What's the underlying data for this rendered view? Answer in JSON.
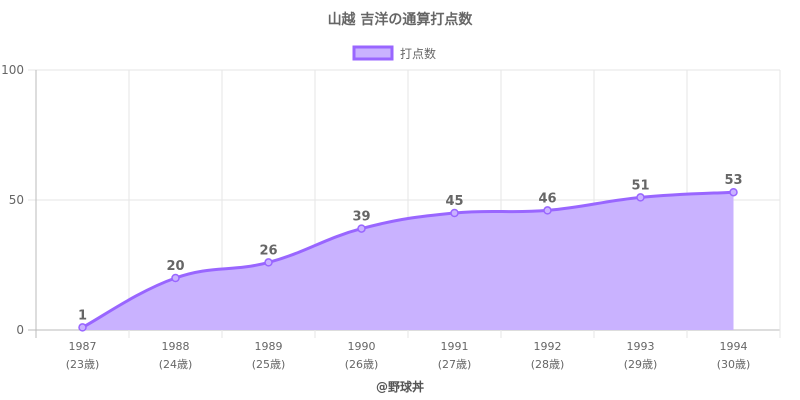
{
  "chart_data": {
    "type": "area",
    "title": "山越 吉洋の通算打点数",
    "categories": [
      "1987",
      "1988",
      "1989",
      "1990",
      "1991",
      "1992",
      "1993",
      "1994"
    ],
    "sublabels": [
      "(23歳)",
      "(24歳)",
      "(25歳)",
      "(26歳)",
      "(27歳)",
      "(28歳)",
      "(29歳)",
      "(30歳)"
    ],
    "series": [
      {
        "name": "打点数",
        "values": [
          1,
          20,
          26,
          39,
          45,
          46,
          51,
          53
        ]
      }
    ],
    "ylim": [
      0,
      100
    ],
    "yticks": [
      0,
      50,
      100
    ],
    "grid": true,
    "legend_position": "top",
    "colors": {
      "line": "#9966ff",
      "fill": "#c9b2ff",
      "grid": "#e6e6e6",
      "axis": "#bbbbbb"
    }
  },
  "footer": "@野球丼"
}
